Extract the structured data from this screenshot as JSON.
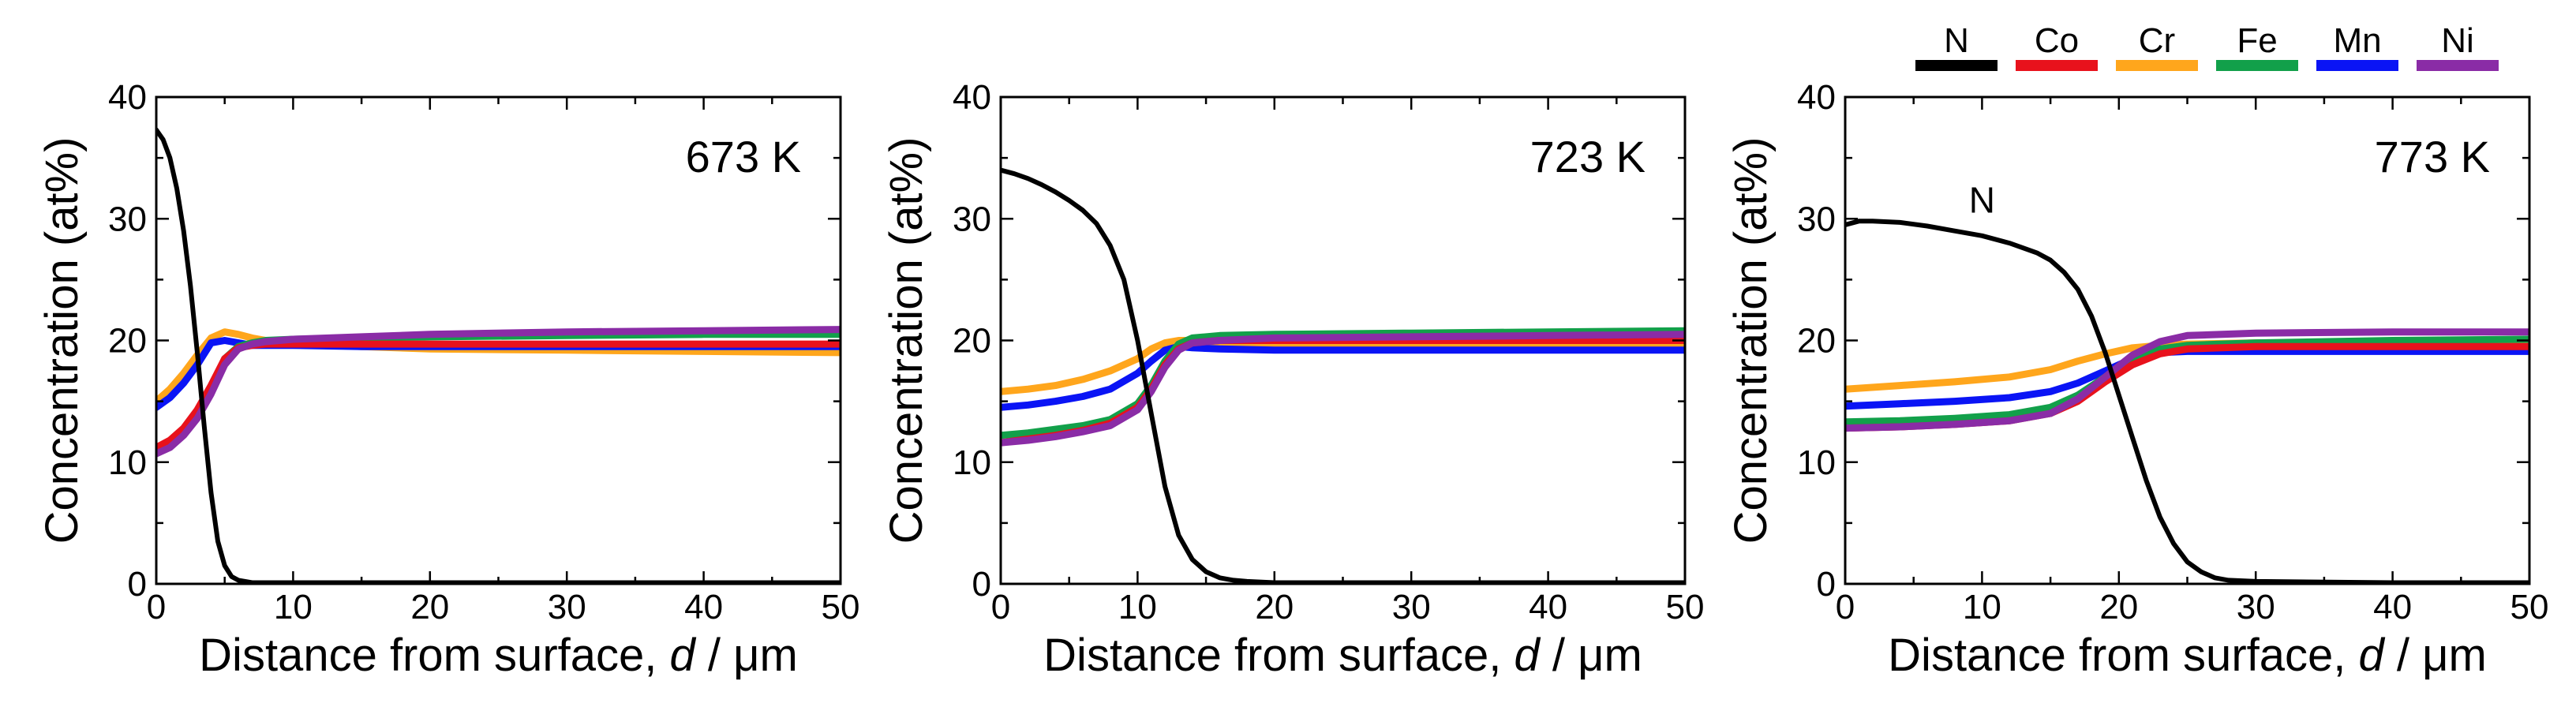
{
  "chart_data": [
    {
      "type": "line",
      "annotation": "673 K",
      "xlabel": "Distance from surface, d / μm",
      "ylabel": "Concentration (at%)",
      "xlim": [
        0,
        50
      ],
      "ylim": [
        0,
        40
      ],
      "xticks": [
        0,
        10,
        20,
        30,
        40,
        50
      ],
      "yticks": [
        0,
        10,
        20,
        30,
        40
      ],
      "series": [
        {
          "name": "Cr",
          "x": [
            0,
            1,
            2,
            3,
            4,
            5,
            6,
            7,
            8,
            10,
            15,
            20,
            30,
            40,
            50
          ],
          "y": [
            15.0,
            16.0,
            17.3,
            18.8,
            20.2,
            20.7,
            20.5,
            20.2,
            20.0,
            19.8,
            19.5,
            19.3,
            19.2,
            19.1,
            19.0
          ]
        },
        {
          "name": "Mn",
          "x": [
            0,
            1,
            2,
            3,
            4,
            5,
            6,
            7,
            8,
            10,
            15,
            20,
            30,
            40,
            50
          ],
          "y": [
            14.5,
            15.3,
            16.5,
            18.0,
            19.8,
            20.0,
            19.8,
            19.6,
            19.6,
            19.6,
            19.5,
            19.5,
            19.5,
            19.5,
            19.5
          ]
        },
        {
          "name": "Fe",
          "x": [
            0,
            1,
            2,
            3,
            4,
            5,
            6,
            7,
            8,
            10,
            15,
            20,
            30,
            40,
            50
          ],
          "y": [
            11.0,
            11.5,
            12.5,
            14.0,
            16.0,
            18.5,
            19.5,
            19.8,
            20.0,
            20.1,
            20.2,
            20.3,
            20.4,
            20.5,
            20.5
          ]
        },
        {
          "name": "Co",
          "x": [
            0,
            1,
            2,
            3,
            4,
            5,
            6,
            7,
            8,
            10,
            15,
            20,
            30,
            40,
            50
          ],
          "y": [
            11.2,
            11.8,
            12.8,
            14.3,
            16.3,
            18.5,
            19.4,
            19.6,
            19.7,
            19.7,
            19.7,
            19.7,
            19.7,
            19.7,
            19.7
          ]
        },
        {
          "name": "Ni",
          "x": [
            0,
            1,
            2,
            3,
            4,
            5,
            6,
            7,
            8,
            10,
            15,
            20,
            30,
            40,
            50
          ],
          "y": [
            10.7,
            11.2,
            12.2,
            13.6,
            15.6,
            18.0,
            19.3,
            19.7,
            19.9,
            20.1,
            20.3,
            20.5,
            20.7,
            20.8,
            20.9
          ]
        },
        {
          "name": "N",
          "x": [
            0,
            0.5,
            1,
            1.5,
            2,
            2.5,
            3,
            3.5,
            4,
            4.5,
            5,
            5.5,
            6,
            7,
            8,
            10,
            15,
            20,
            30,
            40,
            50
          ],
          "y": [
            37.3,
            36.5,
            35.0,
            32.5,
            29.0,
            24.5,
            19.0,
            13.0,
            7.5,
            3.5,
            1.5,
            0.6,
            0.3,
            0.1,
            0.1,
            0.1,
            0.1,
            0.1,
            0.1,
            0.1,
            0.1
          ]
        }
      ]
    },
    {
      "type": "line",
      "annotation": "723 K",
      "xlabel": "Distance from surface, d / μm",
      "ylabel": "Concentration (at%)",
      "xlim": [
        0,
        50
      ],
      "ylim": [
        0,
        40
      ],
      "xticks": [
        0,
        10,
        20,
        30,
        40,
        50
      ],
      "yticks": [
        0,
        10,
        20,
        30,
        40
      ],
      "series": [
        {
          "name": "Cr",
          "x": [
            0,
            2,
            4,
            6,
            8,
            10,
            11,
            12,
            13,
            14,
            16,
            20,
            30,
            40,
            50
          ],
          "y": [
            15.8,
            16.0,
            16.3,
            16.8,
            17.5,
            18.5,
            19.3,
            19.8,
            20.0,
            20.0,
            19.8,
            19.6,
            19.5,
            19.5,
            19.5
          ]
        },
        {
          "name": "Mn",
          "x": [
            0,
            2,
            4,
            6,
            8,
            10,
            11,
            12,
            13,
            14,
            16,
            20,
            30,
            40,
            50
          ],
          "y": [
            14.5,
            14.7,
            15.0,
            15.4,
            16.0,
            17.3,
            18.3,
            19.2,
            19.5,
            19.4,
            19.3,
            19.2,
            19.2,
            19.2,
            19.2
          ]
        },
        {
          "name": "Fe",
          "x": [
            0,
            2,
            4,
            6,
            8,
            10,
            11,
            12,
            13,
            14,
            16,
            20,
            30,
            40,
            50
          ],
          "y": [
            12.2,
            12.4,
            12.7,
            13.0,
            13.5,
            14.8,
            16.3,
            18.3,
            19.7,
            20.2,
            20.4,
            20.5,
            20.6,
            20.7,
            20.8
          ]
        },
        {
          "name": "Co",
          "x": [
            0,
            2,
            4,
            6,
            8,
            10,
            11,
            12,
            13,
            14,
            16,
            20,
            30,
            40,
            50
          ],
          "y": [
            11.6,
            11.9,
            12.2,
            12.6,
            13.2,
            14.5,
            16.0,
            18.0,
            19.3,
            19.8,
            20.0,
            20.0,
            20.0,
            20.0,
            20.0
          ]
        },
        {
          "name": "Ni",
          "x": [
            0,
            2,
            4,
            6,
            8,
            10,
            11,
            12,
            13,
            14,
            16,
            20,
            30,
            40,
            50
          ],
          "y": [
            11.6,
            11.8,
            12.1,
            12.5,
            13.0,
            14.3,
            15.8,
            17.8,
            19.2,
            19.8,
            20.0,
            20.2,
            20.3,
            20.4,
            20.5
          ]
        },
        {
          "name": "N",
          "x": [
            0,
            1,
            2,
            3,
            4,
            5,
            6,
            7,
            8,
            9,
            10,
            11,
            12,
            13,
            14,
            15,
            16,
            17,
            18,
            20,
            25,
            30,
            40,
            50
          ],
          "y": [
            34.0,
            33.7,
            33.3,
            32.8,
            32.2,
            31.5,
            30.7,
            29.6,
            27.8,
            25.0,
            20.0,
            14.0,
            8.0,
            4.0,
            2.0,
            1.0,
            0.5,
            0.3,
            0.2,
            0.1,
            0.1,
            0.1,
            0.1,
            0.1
          ]
        }
      ]
    },
    {
      "type": "line",
      "annotation": "773 K",
      "xlabel": "Distance from surface, d / μm",
      "ylabel": "Concentration (at%)",
      "xlim": [
        0,
        50
      ],
      "ylim": [
        0,
        40
      ],
      "xticks": [
        0,
        10,
        20,
        30,
        40,
        50
      ],
      "yticks": [
        0,
        10,
        20,
        30,
        40
      ],
      "series_label": {
        "text": "N",
        "x": 10,
        "y": 30.5
      },
      "series": [
        {
          "name": "Cr",
          "x": [
            0,
            4,
            8,
            12,
            15,
            17,
            19,
            21,
            23,
            25,
            30,
            40,
            50
          ],
          "y": [
            16.0,
            16.3,
            16.6,
            17.0,
            17.6,
            18.3,
            18.9,
            19.4,
            19.6,
            19.7,
            19.8,
            19.8,
            19.8
          ]
        },
        {
          "name": "Mn",
          "x": [
            0,
            4,
            8,
            12,
            15,
            17,
            19,
            21,
            23,
            25,
            30,
            40,
            50
          ],
          "y": [
            14.6,
            14.8,
            15.0,
            15.3,
            15.8,
            16.5,
            17.5,
            18.5,
            19.0,
            19.1,
            19.1,
            19.1,
            19.1
          ]
        },
        {
          "name": "Fe",
          "x": [
            0,
            4,
            8,
            12,
            15,
            17,
            19,
            21,
            23,
            25,
            30,
            40,
            50
          ],
          "y": [
            13.3,
            13.4,
            13.6,
            13.9,
            14.5,
            15.5,
            17.0,
            18.5,
            19.3,
            19.6,
            19.8,
            20.0,
            20.1
          ]
        },
        {
          "name": "Co",
          "x": [
            0,
            4,
            8,
            12,
            15,
            17,
            19,
            21,
            23,
            25,
            30,
            40,
            50
          ],
          "y": [
            12.8,
            12.9,
            13.1,
            13.4,
            14.0,
            15.0,
            16.6,
            18.0,
            18.9,
            19.3,
            19.5,
            19.5,
            19.5
          ]
        },
        {
          "name": "Ni",
          "x": [
            0,
            4,
            8,
            12,
            15,
            17,
            19,
            21,
            23,
            25,
            30,
            40,
            50
          ],
          "y": [
            12.8,
            12.9,
            13.1,
            13.4,
            14.0,
            15.2,
            17.0,
            18.8,
            19.9,
            20.4,
            20.6,
            20.7,
            20.7
          ]
        },
        {
          "name": "N",
          "x": [
            0,
            1,
            2,
            4,
            6,
            8,
            10,
            12,
            14,
            15,
            16,
            17,
            18,
            19,
            20,
            21,
            22,
            23,
            24,
            25,
            26,
            27,
            28,
            30,
            40,
            50
          ],
          "y": [
            29.5,
            29.8,
            29.8,
            29.7,
            29.4,
            29.0,
            28.6,
            28.0,
            27.2,
            26.6,
            25.6,
            24.2,
            22.0,
            19.0,
            15.5,
            12.0,
            8.5,
            5.5,
            3.3,
            1.8,
            1.0,
            0.5,
            0.3,
            0.2,
            0.1,
            0.1
          ]
        }
      ]
    }
  ],
  "legend": {
    "placement": "top-right",
    "items": [
      {
        "name": "N",
        "color": "#000000"
      },
      {
        "name": "Co",
        "color": "#e8121c"
      },
      {
        "name": "Cr",
        "color": "#ffa61c"
      },
      {
        "name": "Fe",
        "color": "#12a04a"
      },
      {
        "name": "Mn",
        "color": "#0a14f5"
      },
      {
        "name": "Ni",
        "color": "#8a2ca6"
      }
    ]
  },
  "colors": {
    "N": "#000000",
    "Co": "#e8121c",
    "Cr": "#ffa61c",
    "Fe": "#12a04a",
    "Mn": "#0a14f5",
    "Ni": "#8a2ca6"
  }
}
